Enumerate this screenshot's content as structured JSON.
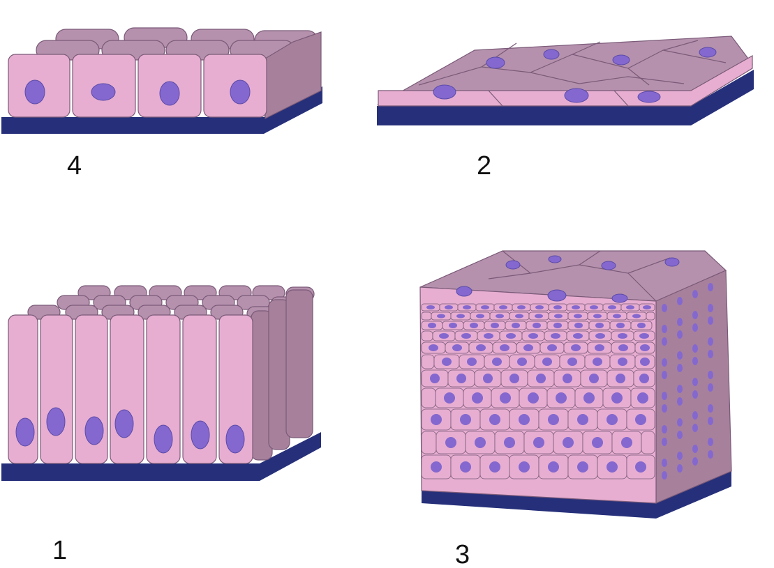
{
  "panels": [
    {
      "id": "cuboidal",
      "label": "4"
    },
    {
      "id": "squamous",
      "label": "2"
    },
    {
      "id": "columnar",
      "label": "1"
    },
    {
      "id": "stratified",
      "label": "3"
    }
  ],
  "colors": {
    "cell_front": "#e7aed1",
    "cell_side": "#a7809c",
    "cell_top": "#b591ad",
    "nucleus": "#8468cf",
    "nucleus_edge": "#5b4aa8",
    "basement": "#26307a",
    "outline": "#7a5a78"
  }
}
